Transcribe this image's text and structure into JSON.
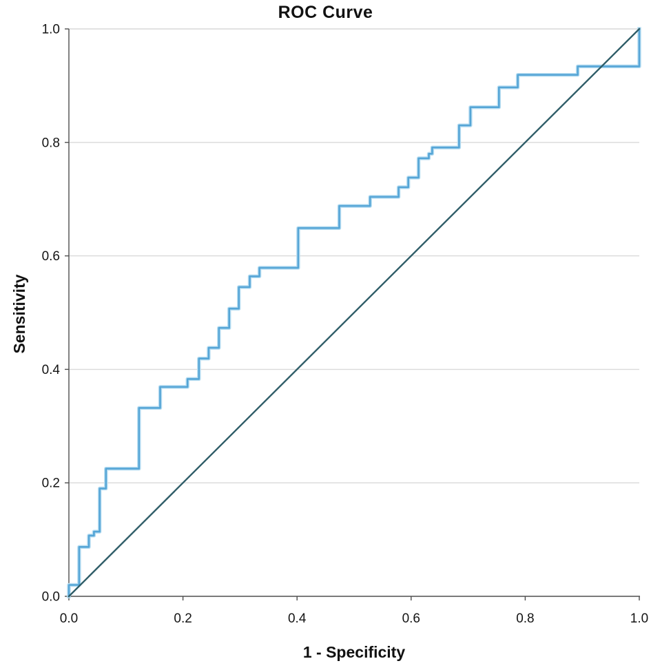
{
  "chart_data": {
    "type": "line",
    "subtype": "roc-step-curve",
    "title": "ROC Curve",
    "xlabel": "1 - Specificity",
    "ylabel": "Sensitivity",
    "xlim": [
      0.0,
      1.0
    ],
    "ylim": [
      0.0,
      1.0
    ],
    "x_ticks": [
      "0.0",
      "0.2",
      "0.4",
      "0.6",
      "0.8",
      "1.0"
    ],
    "y_ticks": [
      "0.0",
      "0.2",
      "0.4",
      "0.6",
      "0.8",
      "1.0"
    ],
    "grid": {
      "horizontal": true,
      "vertical": false,
      "levels": [
        0.2,
        0.4,
        0.6,
        0.8,
        1.0
      ],
      "color": "#d9d9d9"
    },
    "legend": "none",
    "style": {
      "axis_color": "#4d4d4d",
      "text_color": "#141414",
      "background": "#ffffff"
    },
    "series": [
      {
        "name": "ROC curve",
        "type": "step",
        "color": "#55a5d6",
        "halo_color": "#b9def2",
        "points": [
          [
            0,
            0
          ],
          [
            0,
            0.02
          ],
          [
            0.018,
            0.02
          ],
          [
            0.018,
            0.087
          ],
          [
            0.035,
            0.087
          ],
          [
            0.035,
            0.107
          ],
          [
            0.044,
            0.107
          ],
          [
            0.044,
            0.114
          ],
          [
            0.054,
            0.114
          ],
          [
            0.054,
            0.19
          ],
          [
            0.065,
            0.19
          ],
          [
            0.065,
            0.225
          ],
          [
            0.123,
            0.225
          ],
          [
            0.123,
            0.332
          ],
          [
            0.16,
            0.332
          ],
          [
            0.16,
            0.369
          ],
          [
            0.208,
            0.369
          ],
          [
            0.208,
            0.383
          ],
          [
            0.228,
            0.383
          ],
          [
            0.228,
            0.419
          ],
          [
            0.245,
            0.419
          ],
          [
            0.245,
            0.438
          ],
          [
            0.263,
            0.438
          ],
          [
            0.263,
            0.473
          ],
          [
            0.281,
            0.473
          ],
          [
            0.281,
            0.507
          ],
          [
            0.298,
            0.507
          ],
          [
            0.298,
            0.545
          ],
          [
            0.317,
            0.545
          ],
          [
            0.317,
            0.564
          ],
          [
            0.334,
            0.564
          ],
          [
            0.334,
            0.579
          ],
          [
            0.402,
            0.579
          ],
          [
            0.402,
            0.649
          ],
          [
            0.474,
            0.649
          ],
          [
            0.474,
            0.688
          ],
          [
            0.528,
            0.688
          ],
          [
            0.528,
            0.704
          ],
          [
            0.578,
            0.704
          ],
          [
            0.578,
            0.721
          ],
          [
            0.595,
            0.721
          ],
          [
            0.595,
            0.738
          ],
          [
            0.613,
            0.738
          ],
          [
            0.613,
            0.772
          ],
          [
            0.631,
            0.772
          ],
          [
            0.631,
            0.78
          ],
          [
            0.637,
            0.78
          ],
          [
            0.637,
            0.791
          ],
          [
            0.684,
            0.791
          ],
          [
            0.684,
            0.83
          ],
          [
            0.704,
            0.83
          ],
          [
            0.704,
            0.862
          ],
          [
            0.754,
            0.862
          ],
          [
            0.754,
            0.897
          ],
          [
            0.787,
            0.897
          ],
          [
            0.787,
            0.919
          ],
          [
            0.892,
            0.919
          ],
          [
            0.892,
            0.934
          ],
          [
            1,
            0.934
          ],
          [
            1,
            1
          ]
        ]
      },
      {
        "name": "Reference diagonal",
        "type": "line",
        "color": "#2f5d68",
        "points": [
          [
            0,
            0
          ],
          [
            1,
            1
          ]
        ]
      }
    ]
  }
}
